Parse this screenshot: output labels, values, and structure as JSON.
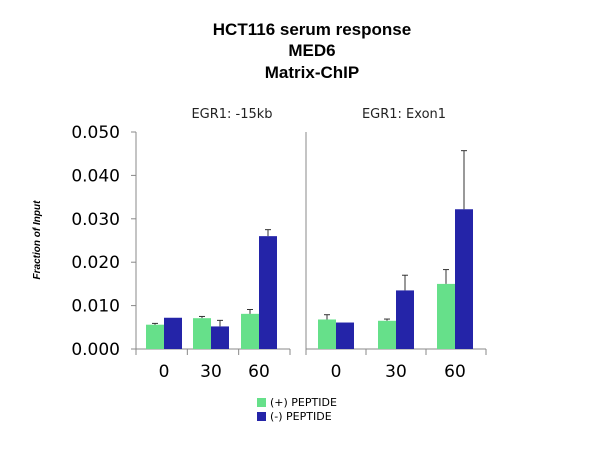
{
  "title_lines": [
    "HCT116 serum response",
    "MED6",
    "Matrix-ChIP"
  ],
  "colors": {
    "plus_peptide": "#66e08a",
    "minus_peptide": "#2424a8"
  },
  "chart_data": [
    {
      "type": "bar",
      "title": "EGR1: -15kb",
      "ylabel": "Fraction of Input",
      "categories": [
        "0",
        "30",
        "60"
      ],
      "ylim": [
        0,
        0.05
      ],
      "yticks": [
        "0.000",
        "0.010",
        "0.020",
        "0.030",
        "0.040",
        "0.050"
      ],
      "series": [
        {
          "name": "(+) PEPTIDE",
          "values": [
            0.0056,
            0.0071,
            0.0081
          ],
          "errors": [
            0.0003,
            0.0004,
            0.001
          ]
        },
        {
          "name": "(-) PEPTIDE",
          "values": [
            0.0072,
            0.0052,
            0.026
          ],
          "errors": [
            0.0,
            0.0014,
            0.0015
          ]
        }
      ]
    },
    {
      "type": "bar",
      "title": "EGR1: Exon1",
      "categories": [
        "0",
        "30",
        "60"
      ],
      "ylim": [
        0,
        0.05
      ],
      "series": [
        {
          "name": "(+) PEPTIDE",
          "values": [
            0.0068,
            0.0065,
            0.015
          ],
          "errors": [
            0.0011,
            0.0004,
            0.0033
          ]
        },
        {
          "name": "(-) PEPTIDE",
          "values": [
            0.0061,
            0.0135,
            0.0322
          ],
          "errors": [
            0.0,
            0.0035,
            0.0135
          ]
        }
      ]
    }
  ],
  "legend": [
    "(+) PEPTIDE",
    "(-) PEPTIDE"
  ]
}
